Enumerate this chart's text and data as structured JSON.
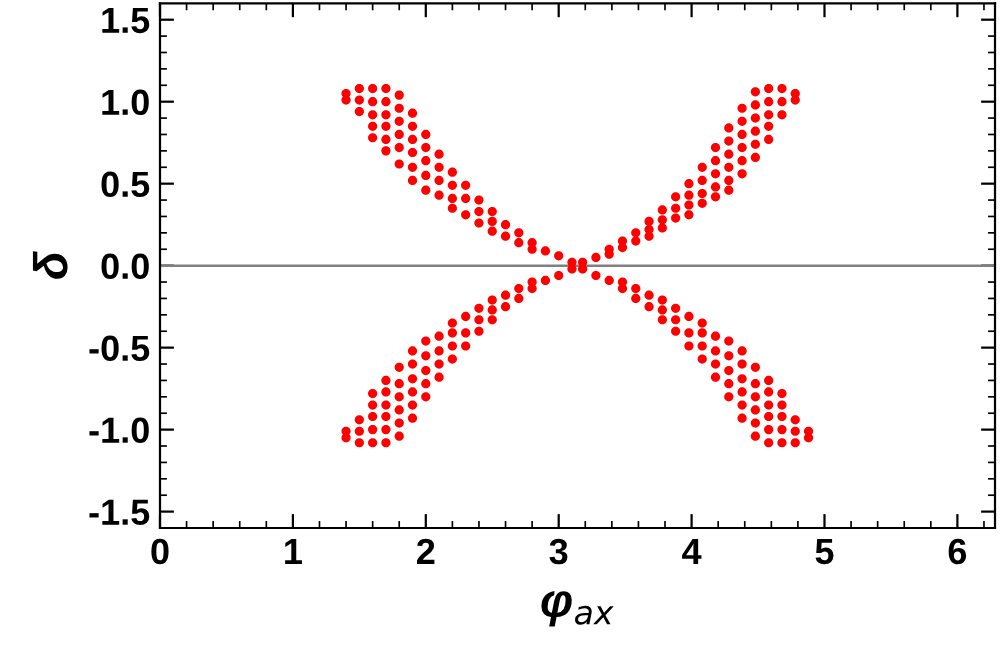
{
  "chart_data": {
    "type": "scatter",
    "xlabel": "φ$_{ax}$",
    "ylabel": "δ",
    "marker": "circle",
    "grid": false,
    "legend": false,
    "xlim": [
      0,
      6.283
    ],
    "ylim": [
      -1.6,
      1.6
    ],
    "xticks": [
      0,
      1,
      2,
      3,
      4,
      5,
      6
    ],
    "yticks": [
      -1.5,
      {
        "value": -1,
        "label": "-1.0"
      },
      -0.5,
      {
        "value": 0,
        "label": "0.0"
      },
      0.5,
      {
        "value": 1,
        "label": "1.0"
      },
      1.5
    ],
    "ref_lines": [
      {
        "axis": "y",
        "value": 0,
        "color": "#808080"
      }
    ],
    "series": [
      {
        "color": "#ff0000",
        "x": [
          1.4,
          1.4,
          1.5,
          1.5,
          1.5,
          1.6,
          1.6,
          1.6,
          1.6,
          1.6,
          1.7,
          1.7,
          1.7,
          1.7,
          1.7,
          1.7,
          1.8,
          1.8,
          1.8,
          1.8,
          1.8,
          1.8,
          1.9,
          1.9,
          1.9,
          1.9,
          1.9,
          1.9,
          2.0,
          2.0,
          2.0,
          2.0,
          2.0,
          2.1,
          2.1,
          2.1,
          2.1,
          2.2,
          2.2,
          2.2,
          2.2,
          2.3,
          2.3,
          2.3,
          2.4,
          2.4,
          2.4,
          2.5,
          2.5,
          2.5,
          2.6,
          2.6,
          2.7,
          2.7,
          2.8,
          2.8,
          2.9,
          3.0,
          3.1
        ],
        "values": [
          1.05,
          1.01,
          1.08,
          1.01,
          0.94,
          1.08,
          1.0,
          0.92,
          0.85,
          0.78,
          1.08,
          1.0,
          0.92,
          0.85,
          0.77,
          0.7,
          1.04,
          0.96,
          0.88,
          0.8,
          0.72,
          0.62,
          0.93,
          0.85,
          0.77,
          0.69,
          0.6,
          0.52,
          0.8,
          0.72,
          0.64,
          0.55,
          0.46,
          0.68,
          0.6,
          0.52,
          0.43,
          0.57,
          0.49,
          0.41,
          0.35,
          0.49,
          0.41,
          0.31,
          0.4,
          0.33,
          0.26,
          0.33,
          0.27,
          0.21,
          0.25,
          0.18,
          0.2,
          0.14,
          0.14,
          0.1,
          0.09,
          0.06,
          0.02
        ]
      },
      {
        "color": "#ff0000",
        "x": [
          1.4,
          1.4,
          1.5,
          1.5,
          1.5,
          1.6,
          1.6,
          1.6,
          1.6,
          1.6,
          1.7,
          1.7,
          1.7,
          1.7,
          1.7,
          1.7,
          1.8,
          1.8,
          1.8,
          1.8,
          1.8,
          1.8,
          1.9,
          1.9,
          1.9,
          1.9,
          1.9,
          1.9,
          2.0,
          2.0,
          2.0,
          2.0,
          2.0,
          2.1,
          2.1,
          2.1,
          2.1,
          2.2,
          2.2,
          2.2,
          2.2,
          2.3,
          2.3,
          2.3,
          2.4,
          2.4,
          2.4,
          2.5,
          2.5,
          2.5,
          2.6,
          2.6,
          2.7,
          2.7,
          2.8,
          2.8,
          2.9,
          3.0,
          3.1
        ],
        "values": [
          -1.05,
          -1.01,
          -1.08,
          -1.01,
          -0.94,
          -1.08,
          -1.0,
          -0.92,
          -0.85,
          -0.78,
          -1.08,
          -1.0,
          -0.92,
          -0.85,
          -0.77,
          -0.7,
          -1.04,
          -0.96,
          -0.88,
          -0.8,
          -0.72,
          -0.62,
          -0.93,
          -0.85,
          -0.77,
          -0.69,
          -0.6,
          -0.52,
          -0.8,
          -0.72,
          -0.64,
          -0.55,
          -0.46,
          -0.68,
          -0.6,
          -0.52,
          -0.43,
          -0.57,
          -0.49,
          -0.41,
          -0.35,
          -0.49,
          -0.41,
          -0.31,
          -0.4,
          -0.33,
          -0.26,
          -0.33,
          -0.27,
          -0.21,
          -0.25,
          -0.18,
          -0.2,
          -0.14,
          -0.14,
          -0.1,
          -0.09,
          -0.06,
          -0.02
        ]
      },
      {
        "color": "#ff0000",
        "x": [
          4.88,
          4.88,
          4.78,
          4.78,
          4.78,
          4.68,
          4.68,
          4.68,
          4.68,
          4.68,
          4.58,
          4.58,
          4.58,
          4.58,
          4.58,
          4.58,
          4.48,
          4.48,
          4.48,
          4.48,
          4.48,
          4.48,
          4.38,
          4.38,
          4.38,
          4.38,
          4.38,
          4.38,
          4.28,
          4.28,
          4.28,
          4.28,
          4.28,
          4.18,
          4.18,
          4.18,
          4.18,
          4.08,
          4.08,
          4.08,
          4.08,
          3.98,
          3.98,
          3.98,
          3.88,
          3.88,
          3.88,
          3.78,
          3.78,
          3.78,
          3.68,
          3.68,
          3.58,
          3.58,
          3.48,
          3.48,
          3.38,
          3.28,
          3.18
        ],
        "values": [
          -1.05,
          -1.01,
          -1.08,
          -1.01,
          -0.94,
          -1.08,
          -1.0,
          -0.92,
          -0.85,
          -0.78,
          -1.08,
          -1.0,
          -0.92,
          -0.85,
          -0.77,
          -0.7,
          -1.04,
          -0.96,
          -0.88,
          -0.8,
          -0.72,
          -0.62,
          -0.93,
          -0.85,
          -0.77,
          -0.69,
          -0.6,
          -0.52,
          -0.8,
          -0.72,
          -0.64,
          -0.55,
          -0.46,
          -0.68,
          -0.6,
          -0.52,
          -0.43,
          -0.57,
          -0.49,
          -0.41,
          -0.35,
          -0.49,
          -0.41,
          -0.31,
          -0.4,
          -0.33,
          -0.26,
          -0.33,
          -0.27,
          -0.21,
          -0.25,
          -0.18,
          -0.2,
          -0.14,
          -0.14,
          -0.1,
          -0.09,
          -0.06,
          -0.02
        ]
      },
      {
        "color": "#ff0000",
        "x": [
          4.78,
          4.78,
          4.68,
          4.68,
          4.68,
          4.58,
          4.58,
          4.58,
          4.58,
          4.58,
          4.48,
          4.48,
          4.48,
          4.48,
          4.48,
          4.48,
          4.38,
          4.38,
          4.38,
          4.38,
          4.38,
          4.38,
          4.28,
          4.28,
          4.28,
          4.28,
          4.28,
          4.28,
          4.18,
          4.18,
          4.18,
          4.18,
          4.18,
          4.08,
          4.08,
          4.08,
          4.08,
          3.98,
          3.98,
          3.98,
          3.98,
          3.88,
          3.88,
          3.88,
          3.78,
          3.78,
          3.78,
          3.68,
          3.68,
          3.68,
          3.58,
          3.58,
          3.48,
          3.48,
          3.38,
          3.38,
          3.28,
          3.18
        ],
        "values": [
          1.05,
          1.01,
          1.08,
          1.0,
          0.92,
          1.08,
          1.0,
          0.92,
          0.85,
          0.77,
          1.06,
          0.98,
          0.9,
          0.82,
          0.74,
          0.66,
          0.96,
          0.88,
          0.8,
          0.72,
          0.64,
          0.56,
          0.84,
          0.76,
          0.68,
          0.6,
          0.52,
          0.46,
          0.72,
          0.64,
          0.56,
          0.48,
          0.42,
          0.6,
          0.52,
          0.44,
          0.38,
          0.5,
          0.43,
          0.37,
          0.31,
          0.42,
          0.35,
          0.29,
          0.34,
          0.28,
          0.23,
          0.27,
          0.22,
          0.18,
          0.2,
          0.15,
          0.15,
          0.11,
          0.1,
          0.07,
          0.05,
          0.02
        ]
      }
    ]
  }
}
